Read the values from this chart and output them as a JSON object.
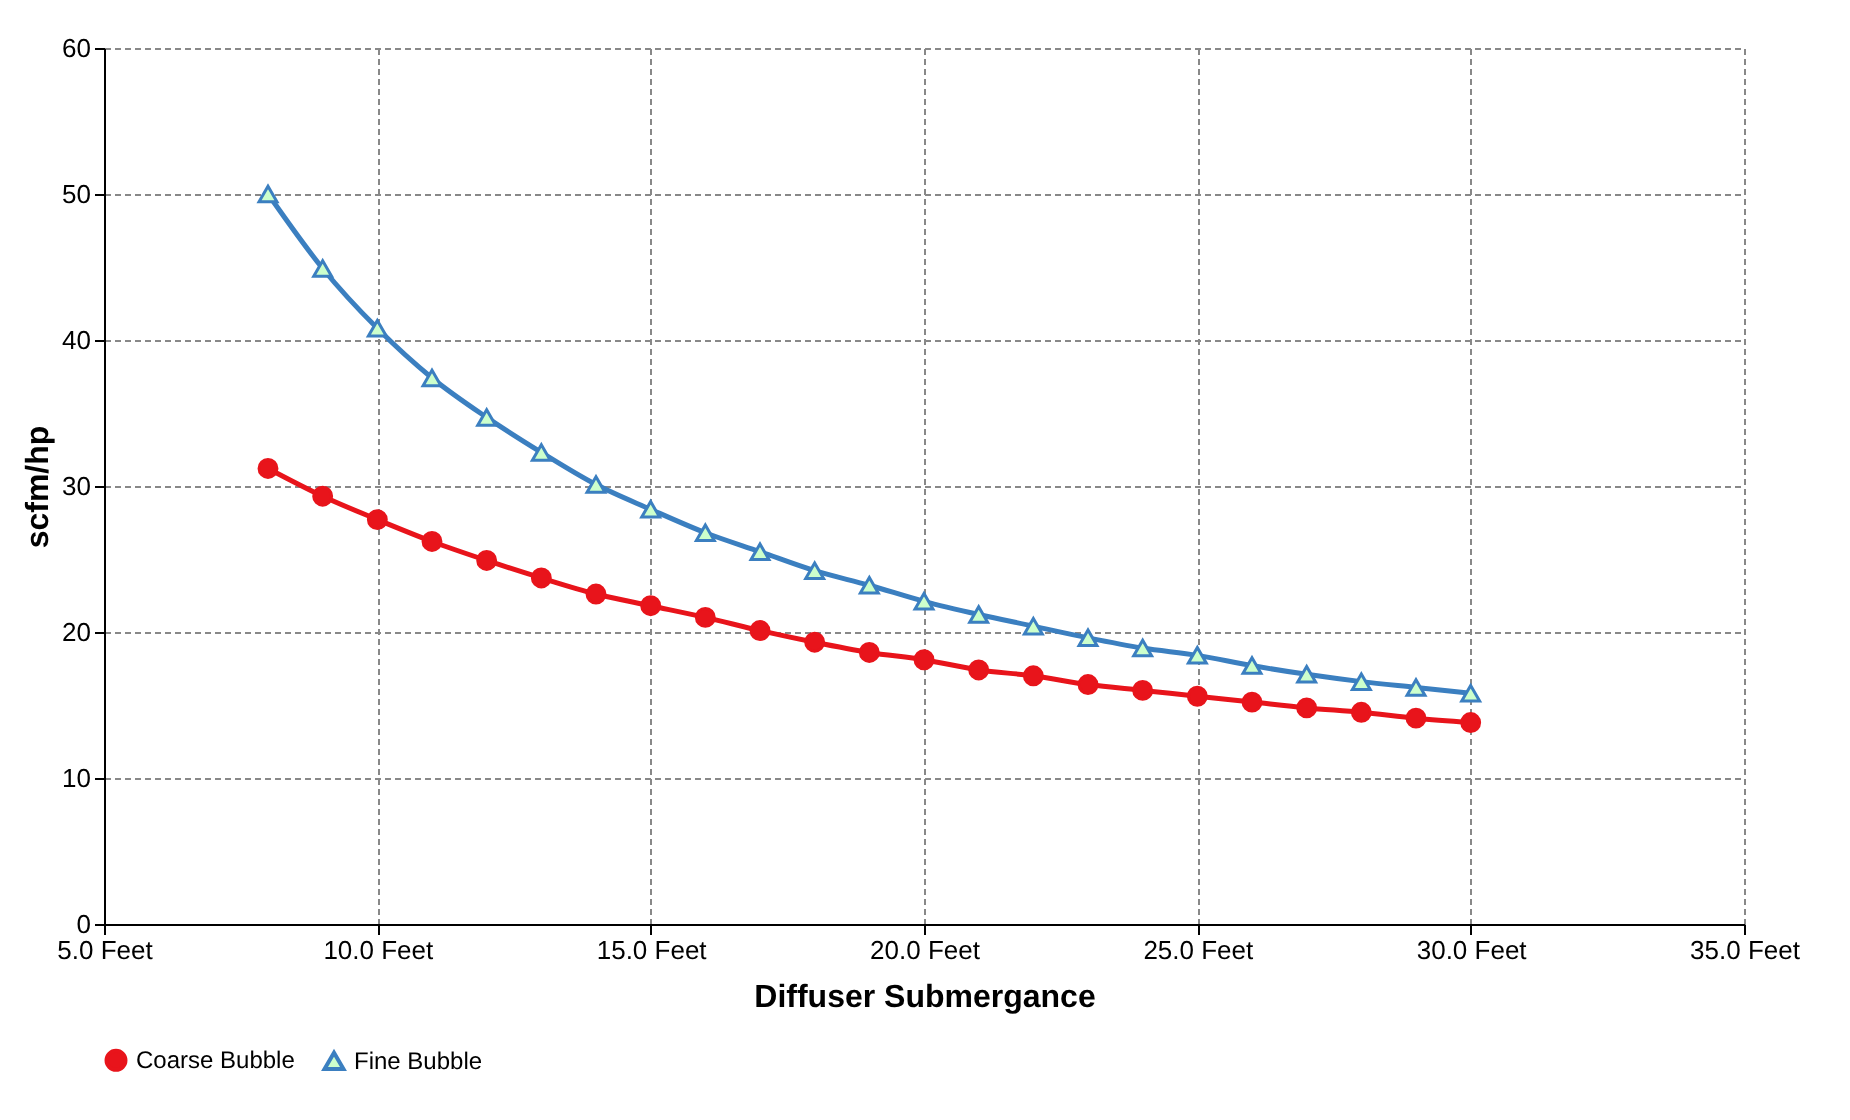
{
  "chart_data": {
    "type": "line",
    "xlabel": "Diffuser Submergance",
    "ylabel": "scfm/hp",
    "x": [
      8,
      9,
      10,
      11,
      12,
      13,
      14,
      15,
      16,
      17,
      18,
      19,
      20,
      21,
      22,
      23,
      24,
      25,
      26,
      27,
      28,
      29,
      30
    ],
    "series": [
      {
        "name": "Coarse Bubble",
        "color": "#e8141b",
        "marker": "circle",
        "values": [
          31.2,
          29.3,
          27.7,
          26.2,
          24.9,
          23.7,
          22.6,
          21.8,
          21.0,
          20.1,
          19.3,
          18.6,
          18.1,
          17.4,
          17.0,
          16.4,
          16.0,
          15.6,
          15.2,
          14.8,
          14.5,
          14.1,
          13.8
        ]
      },
      {
        "name": "Fine Bubble",
        "color": "#3b7fc0",
        "marker": "triangle",
        "values": [
          50.0,
          44.9,
          40.8,
          37.4,
          34.7,
          32.3,
          30.1,
          28.4,
          26.8,
          25.5,
          24.2,
          23.2,
          22.1,
          21.2,
          20.4,
          19.6,
          18.9,
          18.4,
          17.7,
          17.1,
          16.6,
          16.2,
          15.8
        ]
      }
    ],
    "xlim": [
      5,
      35
    ],
    "xticks": [
      {
        "value": 5,
        "label": "5.0 Feet"
      },
      {
        "value": 10,
        "label": "10.0 Feet"
      },
      {
        "value": 15,
        "label": "15.0 Feet"
      },
      {
        "value": 20,
        "label": "20.0 Feet"
      },
      {
        "value": 25,
        "label": "25.0 Feet"
      },
      {
        "value": 30,
        "label": "30.0 Feet"
      },
      {
        "value": 35,
        "label": "35.0 Feet"
      }
    ],
    "ylim": [
      0,
      60
    ],
    "yticks": [
      0,
      10,
      20,
      30,
      40,
      50,
      60
    ],
    "grid": true,
    "legend": "bottom",
    "line_style": "solid"
  }
}
